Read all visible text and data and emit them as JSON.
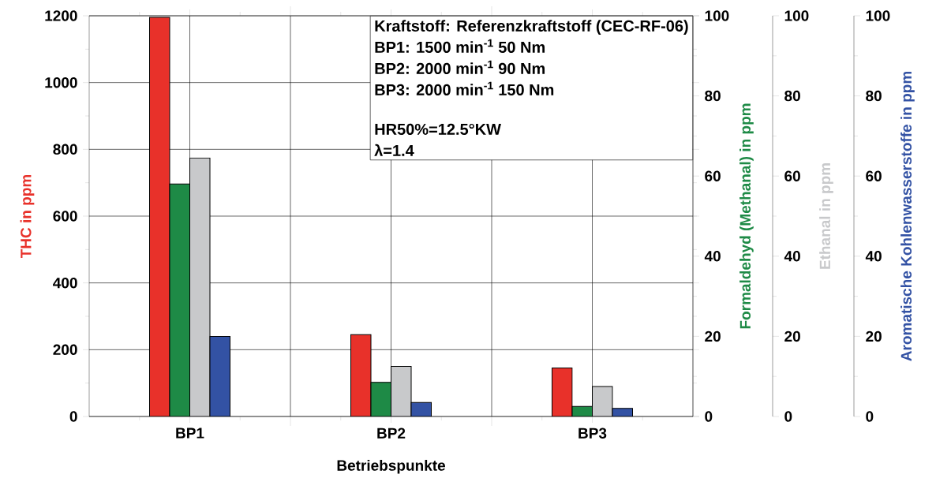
{
  "chart_data": {
    "type": "bar",
    "categories": [
      "BP1",
      "BP2",
      "BP3"
    ],
    "xlabel": "Betriebspunkte",
    "ylabel": "THC in ppm",
    "y2label": "Formaldehyd (Methanal) in ppm",
    "y3label": "Ethanal in ppm",
    "ylim": [
      0,
      1200
    ],
    "yticks": [
      0,
      200,
      400,
      600,
      800,
      1000,
      1200
    ],
    "y2lim": [
      0,
      100
    ],
    "y2ticks": [
      0,
      20,
      40,
      60,
      80,
      100
    ],
    "y3lim": [
      0,
      100
    ],
    "y3ticks": [
      0,
      20,
      40,
      60,
      80,
      100
    ],
    "grid": true,
    "series": [
      {
        "color": "#e8312a",
        "axis": "y",
        "values": [
          1195,
          245,
          145
        ]
      },
      {
        "color": "#1e8a46",
        "axis": "y2",
        "values": [
          58,
          8.5,
          2.5
        ]
      },
      {
        "color": "#c8c9cb",
        "axis": "y3",
        "values": [
          64.5,
          12.5,
          7.5
        ]
      },
      {
        "name": "Aromatische Kohlenwasserstoffe in ppm",
        "color": "#3352a4",
        "axis": "y3",
        "values": [
          20,
          3.5,
          2
        ]
      }
    ],
    "annotations": [
      "Kraftstoff: Referenzkraftstoff (CEC-RF-06)",
      "BP1: 1500 min$^{-1}$ 50 Nm",
      "BP2: 2000 min$^{-1}$ 90 Nm",
      "BP3: 2000 min$^{-1}$ 150 Nm",
      "HR50%=12.5°KW",
      "λ=1.4",
      "0",
      "20",
      "40",
      "60",
      "80",
      "100"
    ]
  }
}
